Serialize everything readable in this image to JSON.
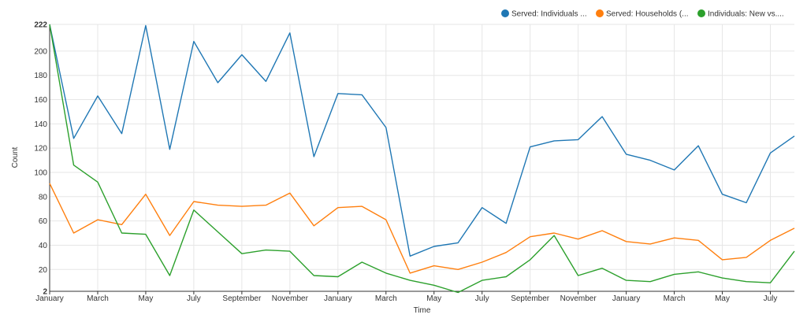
{
  "chart_data": {
    "type": "line",
    "xlabel": "Time",
    "ylabel": "Count",
    "ylim": [
      2,
      222
    ],
    "y_ticks": [
      2,
      20,
      40,
      60,
      80,
      100,
      120,
      140,
      160,
      180,
      200,
      222
    ],
    "x_tick_labels": [
      "January",
      "March",
      "May",
      "July",
      "September",
      "November",
      "January",
      "March",
      "May",
      "July",
      "September",
      "November",
      "January",
      "March",
      "May",
      "July"
    ],
    "grid": true,
    "legend_position": "top-right",
    "series": [
      {
        "name": "Served: Individuals ...",
        "color": "#1f77b4",
        "values": [
          222,
          128,
          163,
          132,
          221,
          119,
          208,
          174,
          197,
          175,
          215,
          113,
          165,
          164,
          137,
          31,
          39,
          42,
          71,
          58,
          121,
          126,
          127,
          146,
          115,
          110,
          102,
          122,
          82,
          75,
          116,
          130
        ]
      },
      {
        "name": "Served: Households (...",
        "color": "#ff7f0e",
        "values": [
          91,
          50,
          61,
          57,
          82,
          48,
          76,
          73,
          72,
          73,
          83,
          56,
          71,
          72,
          61,
          17,
          23,
          20,
          26,
          34,
          47,
          50,
          45,
          52,
          43,
          41,
          46,
          44,
          28,
          30,
          44,
          54
        ]
      },
      {
        "name": "Individuals: New vs....",
        "color": "#2ca02c",
        "values": [
          222,
          106,
          92,
          50,
          49,
          15,
          69,
          51,
          33,
          36,
          35,
          15,
          14,
          26,
          17,
          11,
          7,
          1,
          11,
          14,
          28,
          48,
          15,
          21,
          11,
          10,
          16,
          18,
          13,
          10,
          9,
          35
        ]
      }
    ]
  }
}
